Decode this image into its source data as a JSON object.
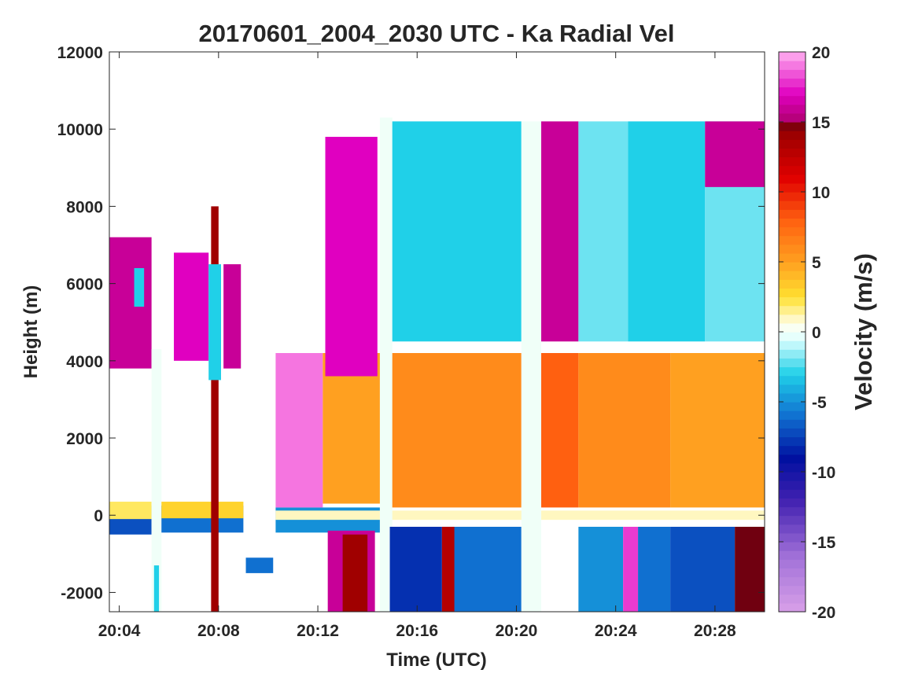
{
  "chart_data": {
    "type": "heatmap",
    "title": "20170601_2004_2030 UTC - Ka Radial Vel",
    "xlabel": "Time (UTC)",
    "ylabel": "Height (m)",
    "xlim_minutes": [
      3.6,
      30.0
    ],
    "x_ticks": [
      {
        "v": 4,
        "label": "20:04"
      },
      {
        "v": 8,
        "label": "20:08"
      },
      {
        "v": 12,
        "label": "20:12"
      },
      {
        "v": 16,
        "label": "20:16"
      },
      {
        "v": 20,
        "label": "20:20"
      },
      {
        "v": 24,
        "label": "20:24"
      },
      {
        "v": 28,
        "label": "20:28"
      }
    ],
    "ylim": [
      -2500,
      12000
    ],
    "y_ticks": [
      {
        "v": 12000,
        "label": "12000"
      },
      {
        "v": 10000,
        "label": "10000"
      },
      {
        "v": 8000,
        "label": "8000"
      },
      {
        "v": 6000,
        "label": "6000"
      },
      {
        "v": 4000,
        "label": "4000"
      },
      {
        "v": 2000,
        "label": "2000"
      },
      {
        "v": 0,
        "label": "0"
      },
      {
        "v": -2000,
        "label": "-2000"
      }
    ],
    "colorbar": {
      "label": "Velocity (m/s)",
      "range": [
        -20,
        20
      ],
      "ticks": [
        {
          "v": 20,
          "label": "20"
        },
        {
          "v": 15,
          "label": "15"
        },
        {
          "v": 10,
          "label": "10"
        },
        {
          "v": 5,
          "label": "5"
        },
        {
          "v": 0,
          "label": "0"
        },
        {
          "v": -5,
          "label": "-5"
        },
        {
          "v": -10,
          "label": "-10"
        },
        {
          "v": -15,
          "label": "-15"
        },
        {
          "v": -20,
          "label": "-20"
        }
      ],
      "stops": [
        {
          "v": -20,
          "color": "#d8a0e8"
        },
        {
          "v": -16,
          "color": "#a070d8"
        },
        {
          "v": -12,
          "color": "#4020b0"
        },
        {
          "v": -9,
          "color": "#0010a0"
        },
        {
          "v": -6,
          "color": "#1070d0"
        },
        {
          "v": -3,
          "color": "#20d0e8"
        },
        {
          "v": -0.5,
          "color": "#e0ffff"
        },
        {
          "v": 0.5,
          "color": "#fffff0"
        },
        {
          "v": 2.5,
          "color": "#ffe030"
        },
        {
          "v": 5,
          "color": "#ffa020"
        },
        {
          "v": 8,
          "color": "#ff6010"
        },
        {
          "v": 11,
          "color": "#e00000"
        },
        {
          "v": 14,
          "color": "#a00000"
        },
        {
          "v": 15,
          "color": "#700010"
        },
        {
          "v": 15.01,
          "color": "#b00070"
        },
        {
          "v": 17,
          "color": "#e000c0"
        },
        {
          "v": 20,
          "color": "#ffb0f0"
        }
      ]
    },
    "regions": [
      {
        "t": [
          3.6,
          5.3
        ],
        "h": [
          -500,
          250
        ],
        "v": -7
      },
      {
        "t": [
          3.6,
          5.3
        ],
        "h": [
          -100,
          350
        ],
        "v": 2
      },
      {
        "t": [
          3.6,
          5.3
        ],
        "h": [
          3800,
          7200
        ],
        "v": 16
      },
      {
        "t": [
          4.6,
          5.0
        ],
        "h": [
          5400,
          6400
        ],
        "v": -3
      },
      {
        "t": [
          5.3,
          5.7
        ],
        "h": [
          -2500,
          4300
        ],
        "v": 0
      },
      {
        "t": [
          5.4,
          5.6
        ],
        "h": [
          -2500,
          -1300
        ],
        "v": -3
      },
      {
        "t": [
          5.7,
          9.0
        ],
        "h": [
          -450,
          250
        ],
        "v": -6
      },
      {
        "t": [
          5.7,
          9.0
        ],
        "h": [
          -80,
          350
        ],
        "v": 3
      },
      {
        "t": [
          6.2,
          7.6
        ],
        "h": [
          4000,
          6800
        ],
        "v": 17
      },
      {
        "t": [
          7.7,
          8.0
        ],
        "h": [
          -2500,
          8000
        ],
        "v": 14
      },
      {
        "t": [
          7.6,
          8.1
        ],
        "h": [
          3500,
          6500
        ],
        "v": -3
      },
      {
        "t": [
          8.2,
          8.9
        ],
        "h": [
          3800,
          6500
        ],
        "v": 16
      },
      {
        "t": [
          9.1,
          10.2
        ],
        "h": [
          -1500,
          -1100
        ],
        "v": -6
      },
      {
        "t": [
          10.3,
          14.5
        ],
        "h": [
          -450,
          200
        ],
        "v": -5
      },
      {
        "t": [
          10.3,
          30.0
        ],
        "h": [
          -120,
          120
        ],
        "v": 1
      },
      {
        "t": [
          10.3,
          12.2
        ],
        "h": [
          200,
          4200
        ],
        "v": 19
      },
      {
        "t": [
          12.2,
          14.5
        ],
        "h": [
          300,
          4200
        ],
        "v": 5
      },
      {
        "t": [
          12.3,
          14.4
        ],
        "h": [
          3600,
          9800
        ],
        "v": 17
      },
      {
        "t": [
          12.4,
          14.3
        ],
        "h": [
          -2500,
          -400
        ],
        "v": 16
      },
      {
        "t": [
          13.0,
          14.0
        ],
        "h": [
          -2500,
          -500
        ],
        "v": 14
      },
      {
        "t": [
          14.5,
          15.0
        ],
        "h": [
          -2500,
          10300
        ],
        "v": 0
      },
      {
        "t": [
          14.9,
          17.0
        ],
        "h": [
          -2500,
          -300
        ],
        "v": -8
      },
      {
        "t": [
          15.0,
          20.2
        ],
        "h": [
          4500,
          10200
        ],
        "v": -3
      },
      {
        "t": [
          15.0,
          20.2
        ],
        "h": [
          200,
          4200
        ],
        "v": 6
      },
      {
        "t": [
          17.0,
          20.2
        ],
        "h": [
          -2500,
          -300
        ],
        "v": -6
      },
      {
        "t": [
          17.0,
          17.5
        ],
        "h": [
          -2500,
          -300
        ],
        "v": 13
      },
      {
        "t": [
          20.2,
          21.0
        ],
        "h": [
          -2500,
          10200
        ],
        "v": 0
      },
      {
        "t": [
          21.0,
          22.5
        ],
        "h": [
          4500,
          10200
        ],
        "v": 16
      },
      {
        "t": [
          21.0,
          22.5
        ],
        "h": [
          200,
          4200
        ],
        "v": 8
      },
      {
        "t": [
          22.5,
          24.5
        ],
        "h": [
          4500,
          10200
        ],
        "v": -2
      },
      {
        "t": [
          22.5,
          26.2
        ],
        "h": [
          200,
          4200
        ],
        "v": 6
      },
      {
        "t": [
          22.5,
          24.3
        ],
        "h": [
          -2500,
          -300
        ],
        "v": -5
      },
      {
        "t": [
          24.3,
          24.9
        ],
        "h": [
          -2500,
          -300
        ],
        "v": 18
      },
      {
        "t": [
          24.9,
          26.2
        ],
        "h": [
          -2500,
          -300
        ],
        "v": -6
      },
      {
        "t": [
          24.5,
          27.6
        ],
        "h": [
          4500,
          10200
        ],
        "v": -3
      },
      {
        "t": [
          26.2,
          30.0
        ],
        "h": [
          200,
          4200
        ],
        "v": 5
      },
      {
        "t": [
          26.2,
          28.8
        ],
        "h": [
          -2500,
          -300
        ],
        "v": -7
      },
      {
        "t": [
          28.8,
          30.0
        ],
        "h": [
          -2500,
          -300
        ],
        "v": 15
      },
      {
        "t": [
          27.6,
          30.0
        ],
        "h": [
          4500,
          10200
        ],
        "v": -2
      },
      {
        "t": [
          27.6,
          30.0
        ],
        "h": [
          8500,
          10200
        ],
        "v": 16
      }
    ]
  }
}
